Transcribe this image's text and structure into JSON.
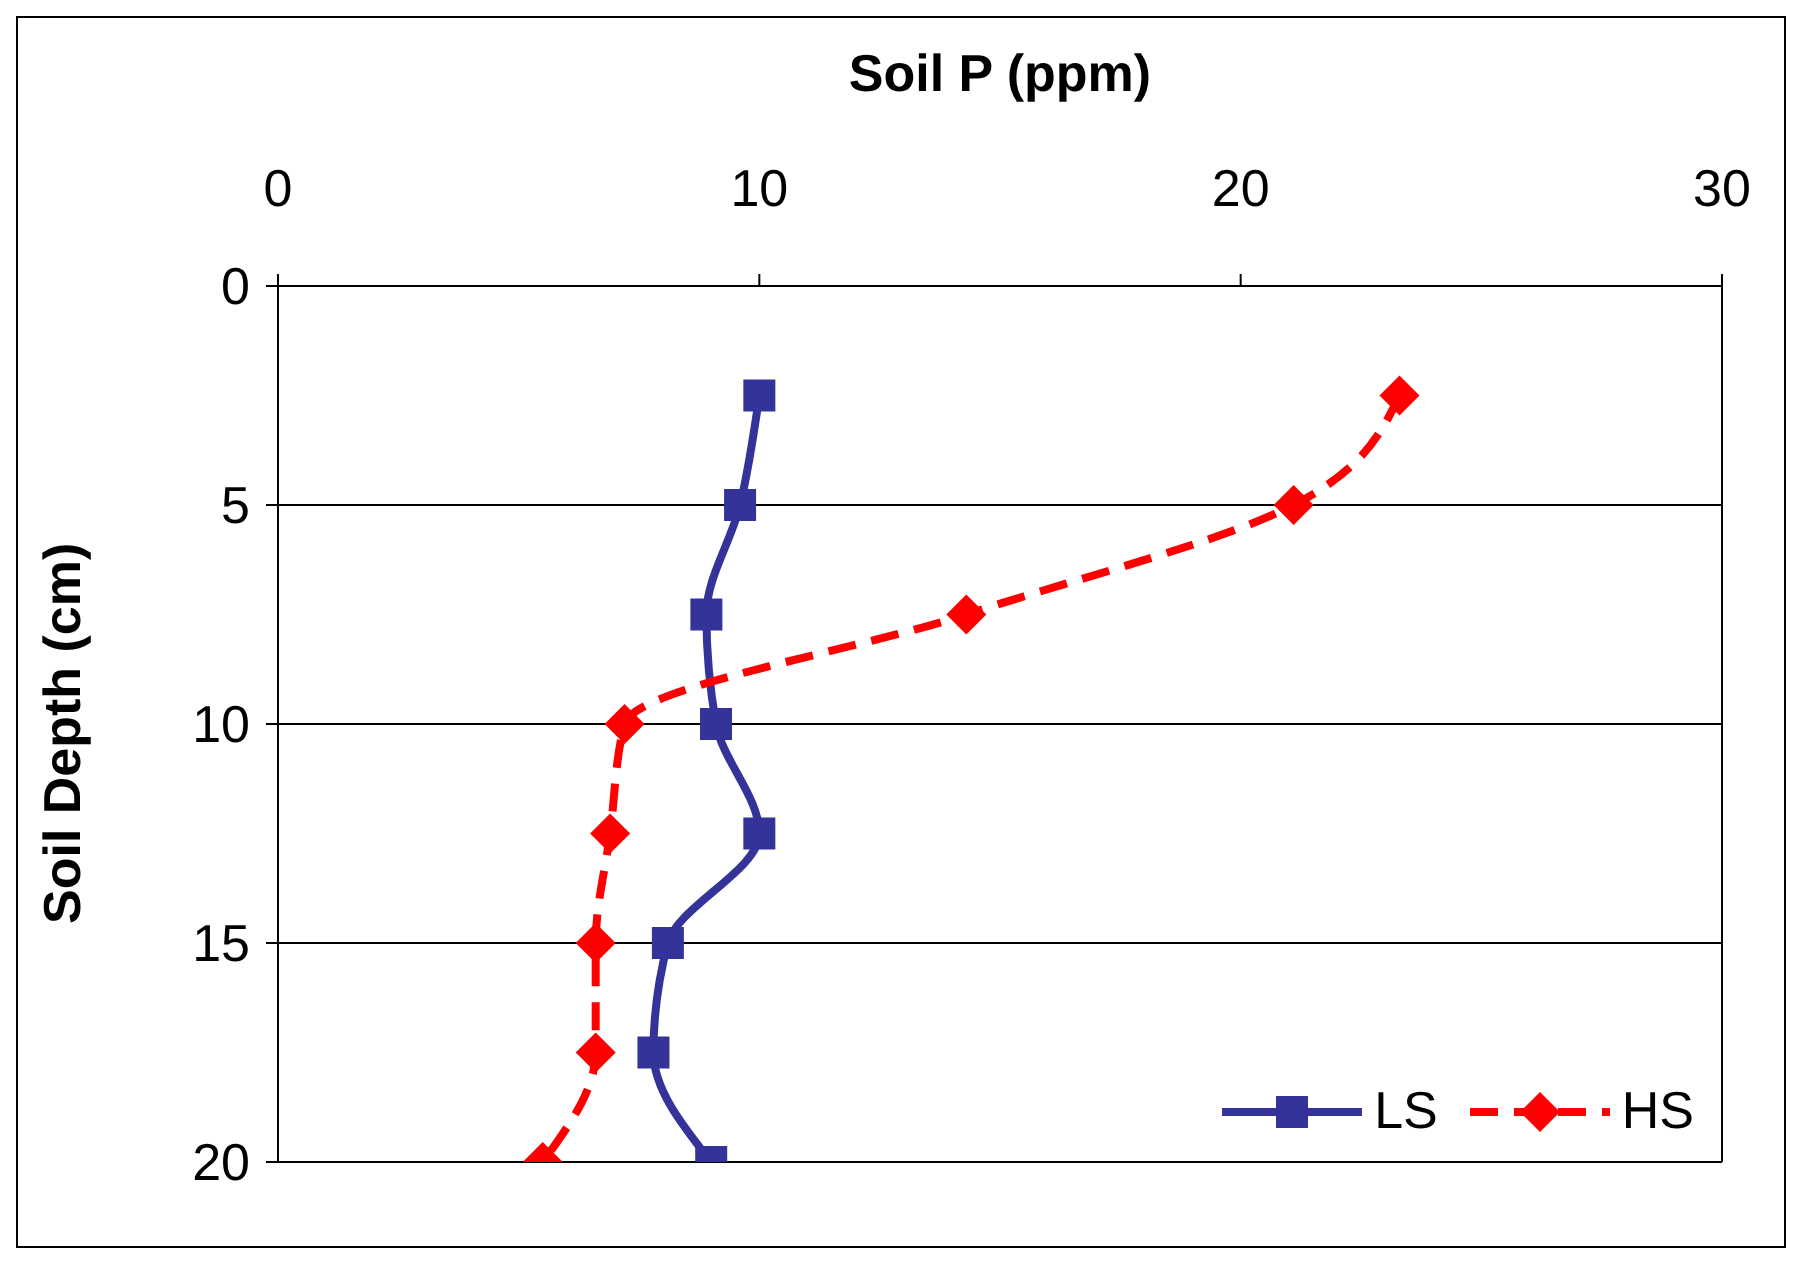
{
  "chart_data": {
    "type": "line",
    "orientation": "horizontal",
    "xlabel": "Soil P (ppm)",
    "ylabel": "Soil Depth (cm)",
    "x": [
      2.5,
      5,
      7.5,
      10,
      12.5,
      15,
      17.5,
      20
    ],
    "series": [
      {
        "name": "LS",
        "color": "#333399",
        "values": [
          10,
          9.6,
          8.9,
          9.1,
          10,
          8.1,
          7.8,
          9.0
        ],
        "marker": "square",
        "line_style": "solid"
      },
      {
        "name": "HS",
        "color": "#ff0000",
        "values": [
          23.3,
          21.1,
          14.3,
          7.2,
          6.9,
          6.6,
          6.6,
          5.5
        ],
        "marker": "diamond",
        "line_style": "dashed"
      }
    ],
    "xlim": [
      0,
      30
    ],
    "xticks": [
      0,
      10,
      20,
      30
    ],
    "ylim": [
      20,
      0
    ],
    "yticks": [
      0,
      5,
      10,
      15,
      20
    ],
    "grid": "y",
    "legend": "bottom right"
  }
}
